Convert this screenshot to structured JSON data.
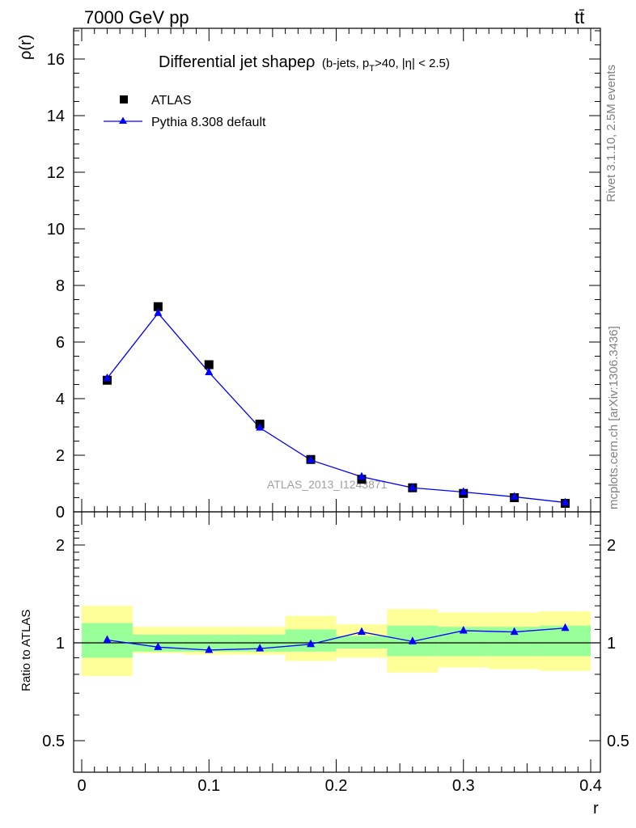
{
  "header": {
    "energy_label": "7000 GeV pp",
    "process_label": "tt̄"
  },
  "side_labels": {
    "rivet": "Rivet 3.1.10,  2.5M events",
    "mcplots": "mcplots.cern.ch [arXiv:1306.3436]"
  },
  "watermark": "ATLAS_2013_I1243871",
  "colors": {
    "mc": "#0000ff",
    "data": "#000000",
    "band_inner": "#99ff99",
    "band_outer": "#ffff99"
  },
  "chart_data": [
    {
      "type": "scatter",
      "title": "Differential jet shapeρ (b-jets, p_T>40, |η| < 2.5)",
      "title_main": "Differential jet shapeρ",
      "title_sub": {
        "pre": "(b-jets, p",
        "sub": "T",
        "post": ">40, |η| < 2.5)"
      },
      "ylabel": "ρ(r)",
      "xlabel": "",
      "xlim": [
        0,
        0.4
      ],
      "ylim": [
        0,
        17
      ],
      "ytick_values": [
        0,
        2,
        4,
        6,
        8,
        10,
        12,
        14,
        16
      ],
      "yticks": [
        "0",
        "2",
        "4",
        "6",
        "8",
        "10",
        "12",
        "14",
        "16"
      ],
      "legend_position": "top-left",
      "x": [
        0.02,
        0.06,
        0.1,
        0.14,
        0.18,
        0.22,
        0.26,
        0.3,
        0.34,
        0.38
      ],
      "series": [
        {
          "name": "ATLAS",
          "marker": "square",
          "values": [
            4.65,
            7.25,
            5.2,
            3.1,
            1.85,
            1.15,
            0.85,
            0.65,
            0.5,
            0.3
          ]
        },
        {
          "name": "Pythia 8.308 default",
          "marker": "triangle",
          "line": true,
          "values": [
            4.72,
            7.02,
            4.93,
            2.97,
            1.83,
            1.24,
            0.85,
            0.7,
            0.53,
            0.33
          ]
        }
      ]
    },
    {
      "type": "line",
      "ylabel": "Ratio to ATLAS",
      "xlabel": "r",
      "xlim": [
        0,
        0.4
      ],
      "ylim": [
        0.4,
        2.3
      ],
      "ytick_values": [
        0.5,
        1,
        2
      ],
      "yticks": [
        "0.5",
        "1",
        "2"
      ],
      "xtick_values": [
        0,
        0.1,
        0.2,
        0.3,
        0.4
      ],
      "xticks": [
        "0",
        "0.1",
        "0.2",
        "0.3",
        "0.4"
      ],
      "bin_edges": [
        0,
        0.04,
        0.08,
        0.12,
        0.16,
        0.2,
        0.24,
        0.28,
        0.32,
        0.36,
        0.4
      ],
      "band_inner": [
        [
          0.9,
          1.15
        ],
        [
          0.94,
          1.06
        ],
        [
          0.94,
          1.06
        ],
        [
          0.94,
          1.06
        ],
        [
          0.94,
          1.1
        ],
        [
          0.96,
          1.05
        ],
        [
          0.91,
          1.13
        ],
        [
          0.91,
          1.12
        ],
        [
          0.91,
          1.12
        ],
        [
          0.91,
          1.13
        ]
      ],
      "band_outer": [
        [
          0.79,
          1.3
        ],
        [
          0.93,
          1.12
        ],
        [
          0.92,
          1.12
        ],
        [
          0.92,
          1.12
        ],
        [
          0.88,
          1.21
        ],
        [
          0.9,
          1.14
        ],
        [
          0.81,
          1.27
        ],
        [
          0.84,
          1.24
        ],
        [
          0.83,
          1.24
        ],
        [
          0.82,
          1.25
        ]
      ],
      "x": [
        0.02,
        0.06,
        0.1,
        0.14,
        0.18,
        0.22,
        0.26,
        0.3,
        0.34,
        0.38
      ],
      "series": [
        {
          "name": "Pythia 8.308 default",
          "values": [
            1.02,
            0.97,
            0.95,
            0.96,
            0.99,
            1.08,
            1.01,
            1.09,
            1.08,
            1.11
          ]
        }
      ]
    }
  ]
}
